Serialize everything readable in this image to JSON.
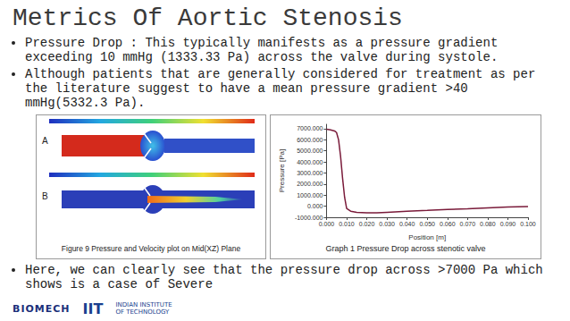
{
  "slide": {
    "title": "Metrics Of Aortic Stenosis",
    "bullets": [
      "Pressure Drop : This typically manifests as a pressure gradient exceeding 10 mmHg (1333.33 Pa) across the valve during systole.",
      "Although patients that are generally considered for treatment as per the literature suggest to have a mean pressure gradient >40 mmHg(5332.3 Pa).",
      "Here, we can clearly see that the pressure drop across >7000 Pa which shows is a case of Severe"
    ],
    "figure": {
      "panels": [
        "A",
        "B"
      ],
      "caption": "Figure 9 Pressure and Velocity plot on Mid(XZ) Plane"
    },
    "footer": [
      "BIOMECH",
      "IIT",
      "INDIAN INSTITUTE OF TECHNOLOGY"
    ]
  },
  "chart_data": {
    "type": "line",
    "title": "Graph 1 Pressure Drop across stenotic valve",
    "x_label": "Position [m]",
    "y_label": "Pressure [Pa]",
    "x": [
      0,
      0.002,
      0.004,
      0.005,
      0.006,
      0.007,
      0.008,
      0.009,
      0.01,
      0.012,
      0.015,
      0.02,
      0.025,
      0.03,
      0.04,
      0.05,
      0.06,
      0.07,
      0.08,
      0.09,
      0.1
    ],
    "values": [
      6950,
      6900,
      6800,
      6650,
      6000,
      4500,
      2500,
      800,
      -200,
      -450,
      -550,
      -600,
      -600,
      -550,
      -450,
      -380,
      -300,
      -230,
      -150,
      -80,
      -30
    ],
    "color": "#7a1b3a",
    "line_style": "solid",
    "marker": "none",
    "xlim": [
      0,
      0.1
    ],
    "xticks": [
      {
        "value": 0,
        "label": "0.000"
      },
      {
        "value": 0.01,
        "label": "0.010"
      },
      {
        "value": 0.02,
        "label": "0.020"
      },
      {
        "value": 0.03,
        "label": "0.030"
      },
      {
        "value": 0.04,
        "label": "0.040"
      },
      {
        "value": 0.05,
        "label": "0.050"
      },
      {
        "value": 0.06,
        "label": "0.060"
      },
      {
        "value": 0.07,
        "label": "0.070"
      },
      {
        "value": 0.08,
        "label": "0.080"
      },
      {
        "value": 0.09,
        "label": "0.090"
      },
      {
        "value": 0.1,
        "label": "0.100"
      }
    ],
    "ylim": [
      -1000,
      7400
    ],
    "yticks": [
      {
        "value": -1000,
        "label": "-1000.000"
      },
      {
        "value": 0,
        "label": "0.000"
      },
      {
        "value": 1000,
        "label": "1000.000"
      },
      {
        "value": 2000,
        "label": "2000.000"
      },
      {
        "value": 3000,
        "label": "3000.000"
      },
      {
        "value": 4000,
        "label": "4000.000"
      },
      {
        "value": 5000,
        "label": "5000.000"
      },
      {
        "value": 6000,
        "label": "6000.000"
      },
      {
        "value": 7000,
        "label": "7000.000"
      }
    ],
    "grid": false
  }
}
